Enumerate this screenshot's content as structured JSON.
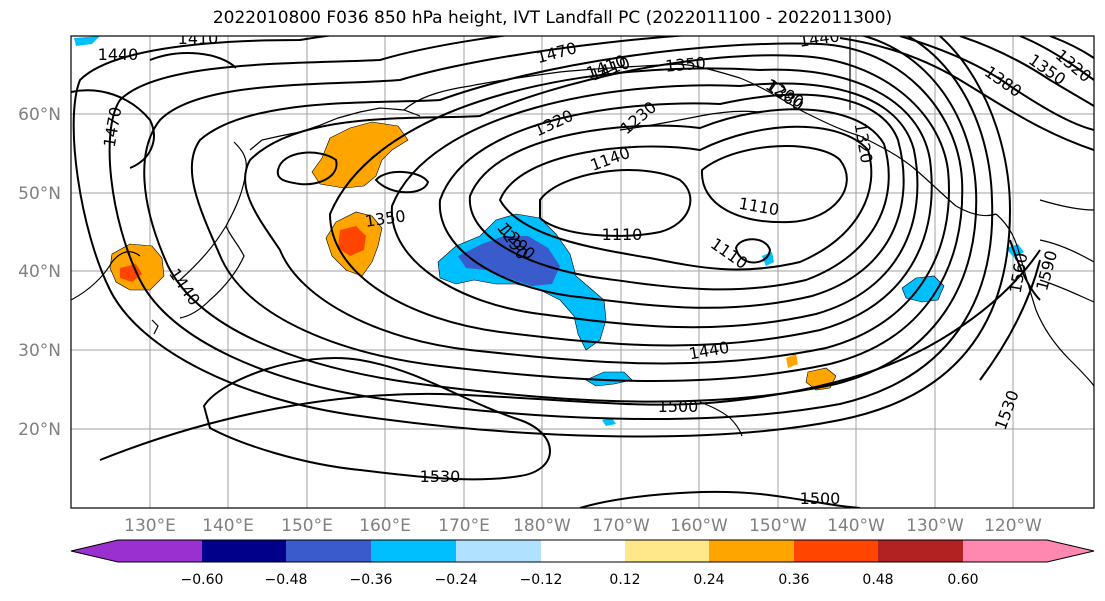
{
  "title": "2022010800 F036 850 hPa height, IVT Landfall PC (2022011100 - 2022011300)",
  "map": {
    "lon_labels": [
      "130°E",
      "140°E",
      "150°E",
      "160°E",
      "170°E",
      "180°W",
      "170°W",
      "160°W",
      "150°W",
      "140°W",
      "130°W",
      "120°W"
    ],
    "lat_labels": [
      "60°N",
      "50°N",
      "40°N",
      "30°N",
      "20°N"
    ],
    "contour_labels": [
      "1410",
      "1440",
      "1470",
      "1470",
      "1410",
      "1380",
      "1440",
      "1320",
      "1290",
      "1230",
      "1320",
      "1350",
      "1410",
      "1380",
      "1350",
      "1320",
      "1140",
      "1200",
      "1350",
      "1290",
      "1110",
      "1110",
      "1110",
      "1440",
      "1500",
      "1530",
      "1530",
      "1500",
      "1590",
      "1560",
      "1440"
    ],
    "grid": true,
    "land_color": "none",
    "coastline_color": "#000000"
  },
  "colorbar": {
    "colors": [
      "#9b30d0",
      "#00008b",
      "#3a5bcc",
      "#00bfff",
      "#b0e2ff",
      "#ffffff",
      "#ffe88a",
      "#ffa500",
      "#ff4500",
      "#b22222",
      "#ff88b0"
    ],
    "tick_labels": [
      "−0.60",
      "−0.48",
      "−0.36",
      "−0.24",
      "−0.12",
      "0.12",
      "0.24",
      "0.36",
      "0.48",
      "0.60"
    ]
  }
}
